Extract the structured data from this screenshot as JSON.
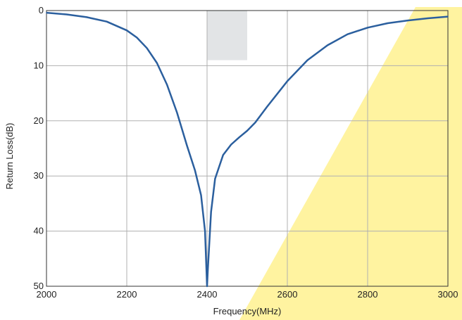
{
  "chart_data": {
    "type": "line",
    "title": "",
    "xlabel": "Frequency(MHz)",
    "ylabel": "Return Loss(dB)",
    "xlim": [
      2000,
      3000
    ],
    "ylim": [
      0,
      50
    ],
    "y_inverted": true,
    "grid": true,
    "x_ticks": [
      "2000",
      "2200",
      "2400",
      "2600",
      "2800",
      "3000"
    ],
    "y_ticks": [
      "0",
      "10",
      "20",
      "30",
      "40",
      "50"
    ],
    "highlight_band": {
      "x": [
        2400,
        2500
      ],
      "y": [
        0,
        9
      ]
    },
    "colors": {
      "series": "#2b5f9e",
      "band": "#e2e4e6",
      "grid": "#b0b0b0",
      "watermark": "#fff3a0"
    },
    "series": [
      {
        "x": [
          2000,
          2050,
          2100,
          2150,
          2200,
          2225,
          2250,
          2275,
          2300,
          2325,
          2350,
          2370,
          2385,
          2395,
          2400,
          2402,
          2410,
          2420,
          2440,
          2460,
          2480,
          2500,
          2520,
          2550,
          2600,
          2650,
          2700,
          2750,
          2800,
          2850,
          2900,
          2950,
          3000
        ],
        "y": [
          0.4,
          0.7,
          1.2,
          2.0,
          3.6,
          4.9,
          6.8,
          9.5,
          13.4,
          18.5,
          24.5,
          29.0,
          33.5,
          40.0,
          50.0,
          47.0,
          36.5,
          30.5,
          26.2,
          24.3,
          23.0,
          21.8,
          20.3,
          17.4,
          12.8,
          9.0,
          6.3,
          4.3,
          3.1,
          2.3,
          1.8,
          1.4,
          1.1
        ]
      }
    ]
  }
}
